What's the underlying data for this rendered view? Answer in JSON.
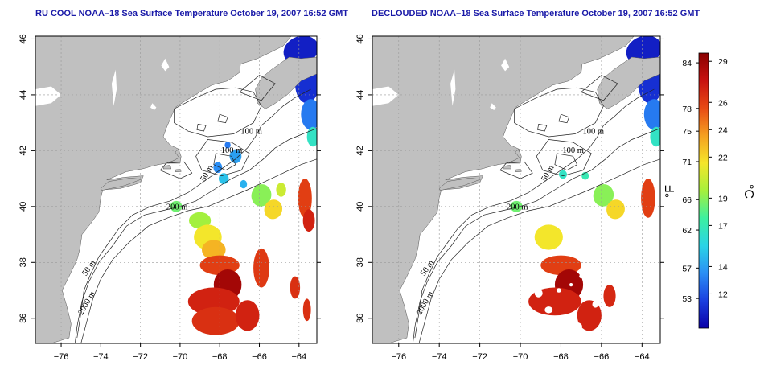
{
  "titles": {
    "left": "RU COOL NOAA–18 Sea Surface Temperature October 19, 2007 16:52 GMT",
    "right": "DECLOUDED NOAA–18 Sea Surface Temperature October 19, 2007 16:52 GMT"
  },
  "axes": {
    "lon_ticks": [
      "−76",
      "−74",
      "−72",
      "−70",
      "−68",
      "−66",
      "−64"
    ],
    "lon_values": [
      -76,
      -74,
      -72,
      -70,
      -68,
      -66,
      -64
    ],
    "lat_ticks": [
      "36",
      "38",
      "40",
      "42",
      "44",
      "46"
    ],
    "lat_values": [
      36,
      38,
      40,
      42,
      44,
      46
    ],
    "lon_range": [
      -77.3,
      -63.1
    ],
    "lat_range": [
      35.1,
      46.1
    ]
  },
  "contours": {
    "labels_left": [
      "100 m",
      "100 m",
      "50 m",
      "200 m",
      "50 m",
      "2000 m"
    ],
    "labels_right": [
      "100 m",
      "100 m",
      "50 m",
      "200 m",
      "50 m",
      "2000 m"
    ]
  },
  "colorbar": {
    "fahrenheit_ticks": [
      "84",
      "78",
      "75",
      "71",
      "66",
      "62",
      "57",
      "53"
    ],
    "fahrenheit_values": [
      84,
      78,
      75,
      71,
      66,
      62,
      57,
      53
    ],
    "celsius_ticks": [
      "29",
      "26",
      "24",
      "22",
      "19",
      "17",
      "14",
      "12"
    ],
    "celsius_values": [
      29,
      26,
      24,
      22,
      19,
      17,
      14,
      12
    ],
    "range_c": [
      9.5,
      29.6
    ],
    "unit_f": "°F",
    "unit_c": "°C",
    "colors": [
      "#0b00a8",
      "#1a3fe0",
      "#2a8ff5",
      "#2ad4e6",
      "#3cf0a0",
      "#a6f03c",
      "#f5e62a",
      "#f5a020",
      "#e84a14",
      "#c81210",
      "#8a0000"
    ]
  },
  "colors": {
    "land": "#c0c0c0",
    "ocean": "#ffffff",
    "title": "#1a1aa8"
  }
}
